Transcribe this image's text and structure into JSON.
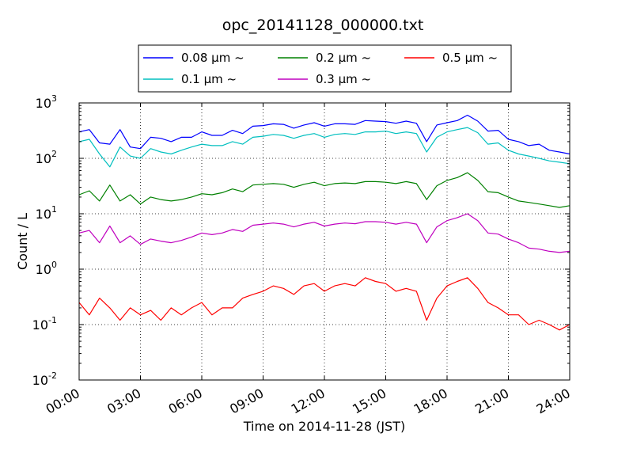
{
  "chart_data": {
    "type": "line",
    "title": "opc_20141128_000000.txt",
    "xlabel": "Time on 2014-11-28 (JST)",
    "ylabel": "Count / L",
    "xlim_hours": [
      0,
      24
    ],
    "x_tick_labels": [
      "00:00",
      "03:00",
      "06:00",
      "09:00",
      "12:00",
      "15:00",
      "18:00",
      "21:00",
      "24:00"
    ],
    "y_scale": "log",
    "ylim": [
      0.01,
      1000
    ],
    "y_tick_labels": [
      {
        "base": "10",
        "exp": "-2"
      },
      {
        "base": "10",
        "exp": "-1"
      },
      {
        "base": "10",
        "exp": "0"
      },
      {
        "base": "10",
        "exp": "1"
      },
      {
        "base": "10",
        "exp": "2"
      },
      {
        "base": "10",
        "exp": "3"
      }
    ],
    "grid": true,
    "legend_position": "top-center",
    "series": [
      {
        "name": "0.08 μm ~",
        "color": "#0000ff",
        "x": [
          0,
          0.5,
          1,
          1.5,
          2,
          2.5,
          3,
          3.5,
          4,
          4.5,
          5,
          5.5,
          6,
          6.5,
          7,
          7.5,
          8,
          8.5,
          9,
          9.5,
          10,
          10.5,
          11,
          11.5,
          12,
          12.5,
          13,
          13.5,
          14,
          14.5,
          15,
          15.5,
          16,
          16.5,
          17,
          17.5,
          18,
          18.5,
          19,
          19.5,
          20,
          20.5,
          21,
          21.5,
          22,
          22.5,
          23,
          23.5,
          24
        ],
        "values": [
          300,
          330,
          190,
          180,
          330,
          160,
          150,
          240,
          230,
          200,
          240,
          240,
          300,
          260,
          260,
          320,
          280,
          380,
          390,
          420,
          410,
          350,
          400,
          440,
          380,
          420,
          420,
          410,
          480,
          470,
          460,
          430,
          470,
          430,
          200,
          400,
          440,
          480,
          600,
          470,
          310,
          320,
          220,
          200,
          170,
          180,
          140,
          130,
          120
        ]
      },
      {
        "name": "0.1 μm ~",
        "color": "#00bfbf",
        "x": [
          0,
          0.5,
          1,
          1.5,
          2,
          2.5,
          3,
          3.5,
          4,
          4.5,
          5,
          5.5,
          6,
          6.5,
          7,
          7.5,
          8,
          8.5,
          9,
          9.5,
          10,
          10.5,
          11,
          11.5,
          12,
          12.5,
          13,
          13.5,
          14,
          14.5,
          15,
          15.5,
          16,
          16.5,
          17,
          17.5,
          18,
          18.5,
          19,
          19.5,
          20,
          20.5,
          21,
          21.5,
          22,
          22.5,
          23,
          23.5,
          24
        ],
        "values": [
          200,
          220,
          120,
          70,
          160,
          110,
          100,
          150,
          130,
          120,
          140,
          160,
          180,
          170,
          170,
          200,
          180,
          240,
          250,
          270,
          260,
          230,
          260,
          280,
          240,
          270,
          280,
          270,
          300,
          300,
          310,
          280,
          300,
          280,
          130,
          240,
          300,
          330,
          360,
          290,
          180,
          190,
          140,
          120,
          110,
          100,
          90,
          85,
          80
        ]
      },
      {
        "name": "0.2 μm ~",
        "color": "#008000",
        "x": [
          0,
          0.5,
          1,
          1.5,
          2,
          2.5,
          3,
          3.5,
          4,
          4.5,
          5,
          5.5,
          6,
          6.5,
          7,
          7.5,
          8,
          8.5,
          9,
          9.5,
          10,
          10.5,
          11,
          11.5,
          12,
          12.5,
          13,
          13.5,
          14,
          14.5,
          15,
          15.5,
          16,
          16.5,
          17,
          17.5,
          18,
          18.5,
          19,
          19.5,
          20,
          20.5,
          21,
          21.5,
          22,
          22.5,
          23,
          23.5,
          24
        ],
        "values": [
          22,
          26,
          17,
          33,
          17,
          22,
          15,
          20,
          18,
          17,
          18,
          20,
          23,
          22,
          24,
          28,
          25,
          33,
          34,
          35,
          34,
          30,
          34,
          37,
          32,
          35,
          36,
          35,
          38,
          38,
          37,
          35,
          38,
          35,
          18,
          32,
          40,
          45,
          55,
          40,
          25,
          24,
          20,
          17,
          16,
          15,
          14,
          13,
          14
        ]
      },
      {
        "name": "0.3 μm ~",
        "color": "#bf00bf",
        "x": [
          0,
          0.5,
          1,
          1.5,
          2,
          2.5,
          3,
          3.5,
          4,
          4.5,
          5,
          5.5,
          6,
          6.5,
          7,
          7.5,
          8,
          8.5,
          9,
          9.5,
          10,
          10.5,
          11,
          11.5,
          12,
          12.5,
          13,
          13.5,
          14,
          14.5,
          15,
          15.5,
          16,
          16.5,
          17,
          17.5,
          18,
          18.5,
          19,
          19.5,
          20,
          20.5,
          21,
          21.5,
          22,
          22.5,
          23,
          23.5,
          24
        ],
        "values": [
          4.5,
          5,
          3,
          6,
          3,
          4,
          2.8,
          3.5,
          3.2,
          3,
          3.3,
          3.8,
          4.5,
          4.2,
          4.5,
          5.2,
          4.8,
          6.2,
          6.5,
          6.8,
          6.5,
          5.8,
          6.5,
          7,
          6,
          6.5,
          6.8,
          6.6,
          7.2,
          7.2,
          7,
          6.5,
          7,
          6.5,
          3,
          5.8,
          7.5,
          8.5,
          10,
          7.5,
          4.5,
          4.3,
          3.5,
          3,
          2.4,
          2.3,
          2.1,
          2,
          2.1
        ]
      },
      {
        "name": "0.5 μm ~",
        "color": "#ff0000",
        "x": [
          0,
          0.5,
          1,
          1.5,
          2,
          2.5,
          3,
          3.5,
          4,
          4.5,
          5,
          5.5,
          6,
          6.5,
          7,
          7.5,
          8,
          8.5,
          9,
          9.5,
          10,
          10.5,
          11,
          11.5,
          12,
          12.5,
          13,
          13.5,
          14,
          14.5,
          15,
          15.5,
          16,
          16.5,
          17,
          17.5,
          18,
          18.5,
          19,
          19.5,
          20,
          20.5,
          21,
          21.5,
          22,
          22.5,
          23,
          23.5,
          24
        ],
        "values": [
          0.25,
          0.15,
          0.3,
          0.2,
          0.12,
          0.2,
          0.15,
          0.18,
          0.12,
          0.2,
          0.15,
          0.2,
          0.25,
          0.15,
          0.2,
          0.2,
          0.3,
          0.35,
          0.4,
          0.5,
          0.45,
          0.35,
          0.5,
          0.55,
          0.4,
          0.5,
          0.55,
          0.5,
          0.7,
          0.6,
          0.55,
          0.4,
          0.45,
          0.4,
          0.12,
          0.3,
          0.5,
          0.6,
          0.7,
          0.45,
          0.25,
          0.2,
          0.15,
          0.15,
          0.1,
          0.12,
          0.1,
          0.08,
          0.1
        ]
      }
    ]
  }
}
